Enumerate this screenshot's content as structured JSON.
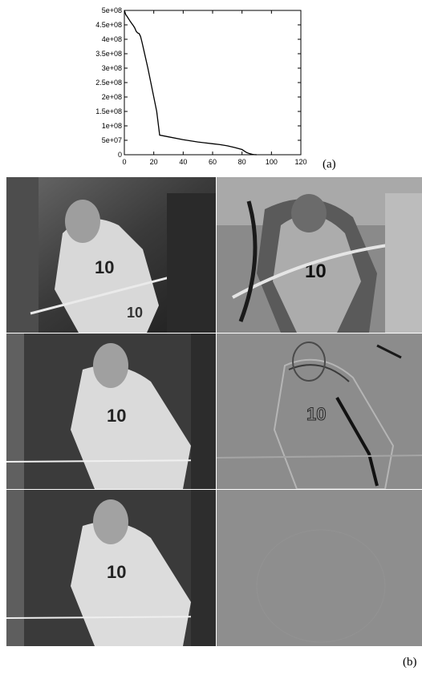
{
  "figure": {
    "label_a": "(a)",
    "label_b": "(b)"
  },
  "chart_data": {
    "type": "line",
    "title": "",
    "xlabel": "",
    "ylabel": "",
    "xlim": [
      0,
      120
    ],
    "ylim": [
      0,
      500000000
    ],
    "xticks": [
      "0",
      "20",
      "40",
      "60",
      "80",
      "100",
      "120"
    ],
    "yticks": [
      "0",
      "5e+07",
      "1e+08",
      "1.5e+08",
      "2e+08",
      "2.5e+08",
      "3e+08",
      "3.5e+08",
      "4e+08",
      "4.5e+08",
      "5e+08"
    ],
    "series": [
      {
        "x": [
          0,
          1,
          2,
          3,
          4,
          5,
          6,
          7,
          8,
          9,
          10,
          11,
          12,
          14,
          16,
          18,
          20,
          22,
          24,
          30,
          40,
          50,
          60,
          65,
          70,
          75,
          80,
          83,
          85,
          87,
          88,
          90
        ],
        "y": [
          500000000,
          485000000,
          478000000,
          470000000,
          462000000,
          455000000,
          448000000,
          440000000,
          428000000,
          422000000,
          420000000,
          410000000,
          390000000,
          345000000,
          300000000,
          250000000,
          200000000,
          150000000,
          68000000,
          62000000,
          52000000,
          44000000,
          38000000,
          35000000,
          31000000,
          25000000,
          18000000,
          8000000,
          4000000,
          1500000,
          500000,
          0
        ]
      }
    ],
    "grid": false
  },
  "panels": [
    {
      "name": "panel-row1-left"
    },
    {
      "name": "panel-row1-right"
    },
    {
      "name": "panel-row2-left"
    },
    {
      "name": "panel-row2-right"
    },
    {
      "name": "panel-row3-left"
    },
    {
      "name": "panel-row3-right"
    }
  ]
}
